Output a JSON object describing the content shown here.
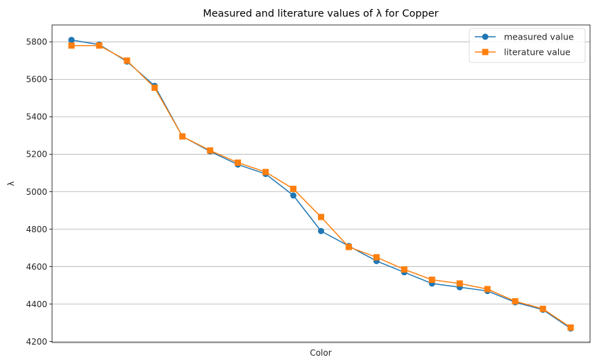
{
  "chart_data": {
    "type": "line",
    "title": "Measured and literature values of λ for Copper",
    "xlabel": "Color",
    "ylabel": "λ",
    "x": [
      1,
      2,
      3,
      4,
      5,
      6,
      7,
      8,
      9,
      10,
      11,
      12,
      13,
      14,
      15,
      16,
      17,
      18,
      19
    ],
    "ylim": [
      4195,
      5890
    ],
    "yticks": [
      4200,
      4400,
      4600,
      4800,
      5000,
      5200,
      5400,
      5600,
      5800
    ],
    "grid": "horizontal",
    "legend_position": "top-right",
    "series": [
      {
        "name": "measured value",
        "color": "#1f77b4",
        "marker": "circle",
        "values": [
          5810,
          5785,
          5695,
          5565,
          5295,
          5215,
          5145,
          5095,
          4980,
          4790,
          4710,
          4630,
          4570,
          4510,
          4490,
          4470,
          4410,
          4370,
          4270
        ]
      },
      {
        "name": "literature value",
        "color": "#ff7f0e",
        "marker": "square",
        "values": [
          5780,
          5780,
          5700,
          5555,
          5295,
          5220,
          5155,
          5105,
          5015,
          4865,
          4705,
          4650,
          4585,
          4530,
          4510,
          4480,
          4415,
          4375,
          4275
        ]
      }
    ]
  }
}
